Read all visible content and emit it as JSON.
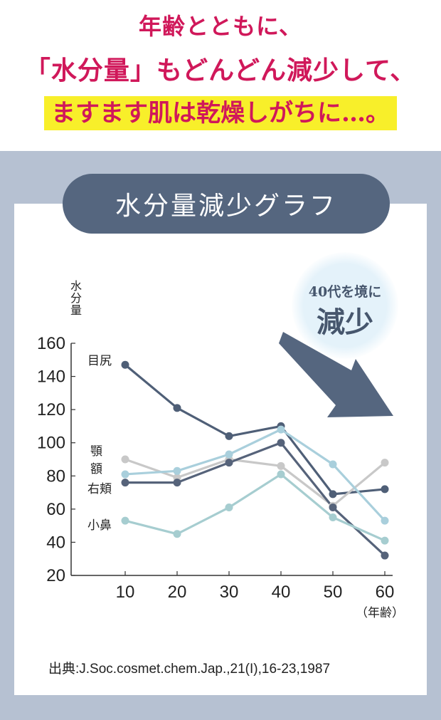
{
  "headline": {
    "line1": "年齢とともに、",
    "line2": "「水分量」もどんどん減少して、",
    "line3": "ますます肌は乾燥しがちに…。"
  },
  "graph_title": "水分量減少グラフ",
  "callout": {
    "top": "40代を境に",
    "big": "減少"
  },
  "source": "出典:J.Soc.cosmet.chem.Jap.,21(I),16-23,1987",
  "colors": {
    "headline": "#d0185a",
    "highlight": "#f8ef2a",
    "panel": "#b6c1d2",
    "pill": "#55667f",
    "arrow": "#55667f"
  },
  "chart_data": {
    "type": "line",
    "ylabel": "水分量",
    "x_unit_label": "（年齢）",
    "x": [
      10,
      20,
      30,
      40,
      50,
      60
    ],
    "x_ticks": [
      "10",
      "20",
      "30",
      "40",
      "50",
      "60"
    ],
    "y_ticks": [
      "160",
      "140",
      "120",
      "100",
      "80",
      "60",
      "40",
      "20"
    ],
    "ylim": [
      20,
      160
    ],
    "grid": false,
    "series": [
      {
        "name": "目尻",
        "color": "#4f5f77",
        "values": [
          147,
          121,
          104,
          110,
          69,
          72
        ]
      },
      {
        "name": "顎",
        "color": "#c8c8c8",
        "values": [
          90,
          79,
          90,
          86,
          62,
          88
        ]
      },
      {
        "name": "額",
        "color": "#a9cfdc",
        "values": [
          81,
          83,
          93,
          108,
          87,
          53
        ]
      },
      {
        "name": "右頬",
        "color": "#56637a",
        "values": [
          76,
          76,
          88,
          100,
          61,
          32
        ]
      },
      {
        "name": "小鼻",
        "color": "#a6cdd0",
        "values": [
          53,
          45,
          61,
          81,
          55,
          41
        ]
      }
    ]
  }
}
